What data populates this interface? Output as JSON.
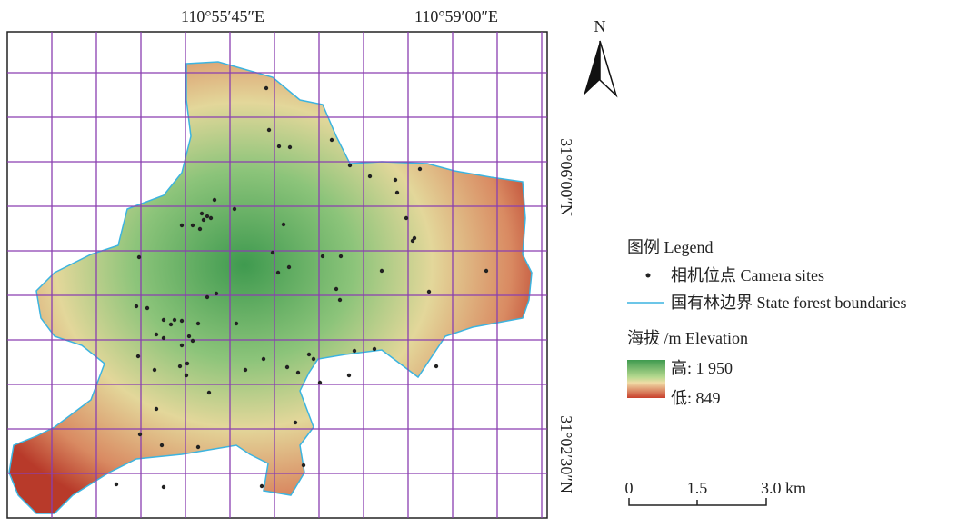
{
  "map": {
    "lon_labels": [
      "110°55′45″E",
      "110°59′00″E"
    ],
    "lat_labels": [
      "31°06′00″N",
      "31°02′30″N"
    ],
    "north": "N",
    "legend": {
      "title": "图例 Legend",
      "camera_sites": "相机位点 Camera sites",
      "boundary": "国有林边界 State forest boundaries",
      "elevation_title": "海拔 /m Elevation",
      "high": "高: 1 950",
      "low": "低: 849"
    },
    "scale_bar": {
      "labels": [
        "0",
        "1.5",
        "3.0 km"
      ]
    }
  }
}
